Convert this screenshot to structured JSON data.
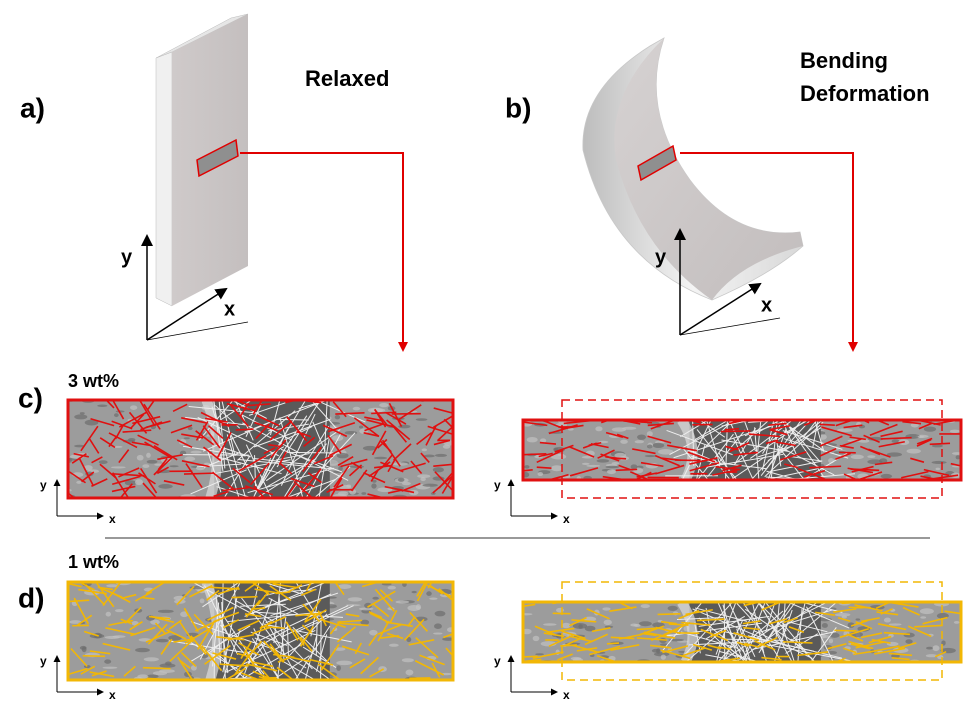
{
  "panels": [
    {
      "label": "a)",
      "caption": [
        "Relaxed"
      ],
      "axes": {
        "y": "y",
        "x": "x"
      }
    },
    {
      "label": "b)",
      "caption": [
        "Bending",
        "Deformation"
      ],
      "axes": {
        "y": "y",
        "x": "x"
      }
    }
  ],
  "rows": [
    {
      "label": "c)",
      "concentration": "3 wt%",
      "axes": [
        {
          "y": "y",
          "x": "x"
        },
        {
          "y": "y",
          "x": "x"
        }
      ]
    },
    {
      "label": "d)",
      "concentration": "1 wt%",
      "axes": [
        {
          "y": "y",
          "x": "x"
        },
        {
          "y": "y",
          "x": "x"
        }
      ]
    }
  ]
}
